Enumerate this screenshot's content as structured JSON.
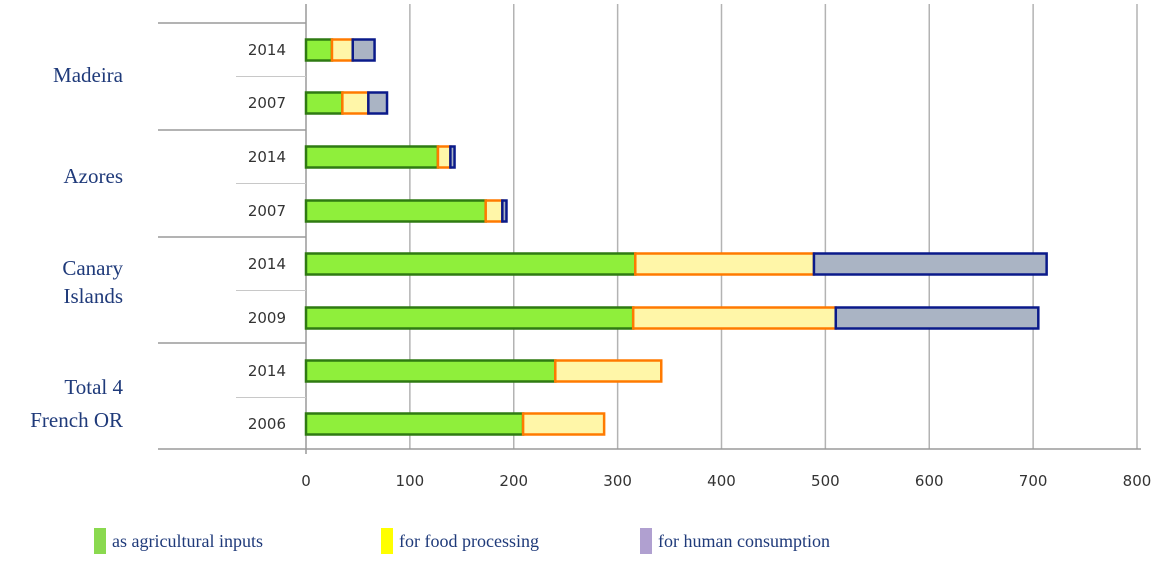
{
  "chart_data": {
    "type": "bar",
    "orientation": "horizontal",
    "stacked": true,
    "xlim": [
      0,
      800
    ],
    "x_ticks": [
      "0",
      "100",
      "200",
      "300",
      "400",
      "500",
      "600",
      "700",
      "800"
    ],
    "grid": "vertical",
    "groups": [
      {
        "label": "Madeira",
        "rows": [
          {
            "year": "2014",
            "values": [
              25,
              20,
              21
            ]
          },
          {
            "year": "2007",
            "values": [
              35,
              25,
              18
            ]
          }
        ]
      },
      {
        "label": "Azores",
        "rows": [
          {
            "year": "2014",
            "values": [
              127,
              12,
              4
            ]
          },
          {
            "year": "2007",
            "values": [
              173,
              16,
              4
            ]
          }
        ]
      },
      {
        "label": "Canary Islands",
        "rows": [
          {
            "year": "2014",
            "values": [
              317,
              172,
              224
            ]
          },
          {
            "year": "2009",
            "values": [
              315,
              195,
              195
            ]
          }
        ]
      },
      {
        "label": "Total 4 French OR",
        "rows": [
          {
            "year": "2014",
            "values": [
              240,
              102,
              0
            ]
          },
          {
            "year": "2006",
            "values": [
              209,
              78,
              0
            ]
          }
        ]
      }
    ],
    "series": [
      {
        "name": "as agricultural inputs",
        "fill": "#8fef3b",
        "stroke": "#2f7a12",
        "legend_color": "#8ad94f"
      },
      {
        "name": "for food processing",
        "fill": "#fff6a8",
        "stroke": "#ff7a00",
        "legend_color": "#ffff00"
      },
      {
        "name": "for human consumption",
        "fill": "#aab4c4",
        "stroke": "#0a1a8a",
        "legend_color": "#b0a0d0"
      }
    ]
  }
}
